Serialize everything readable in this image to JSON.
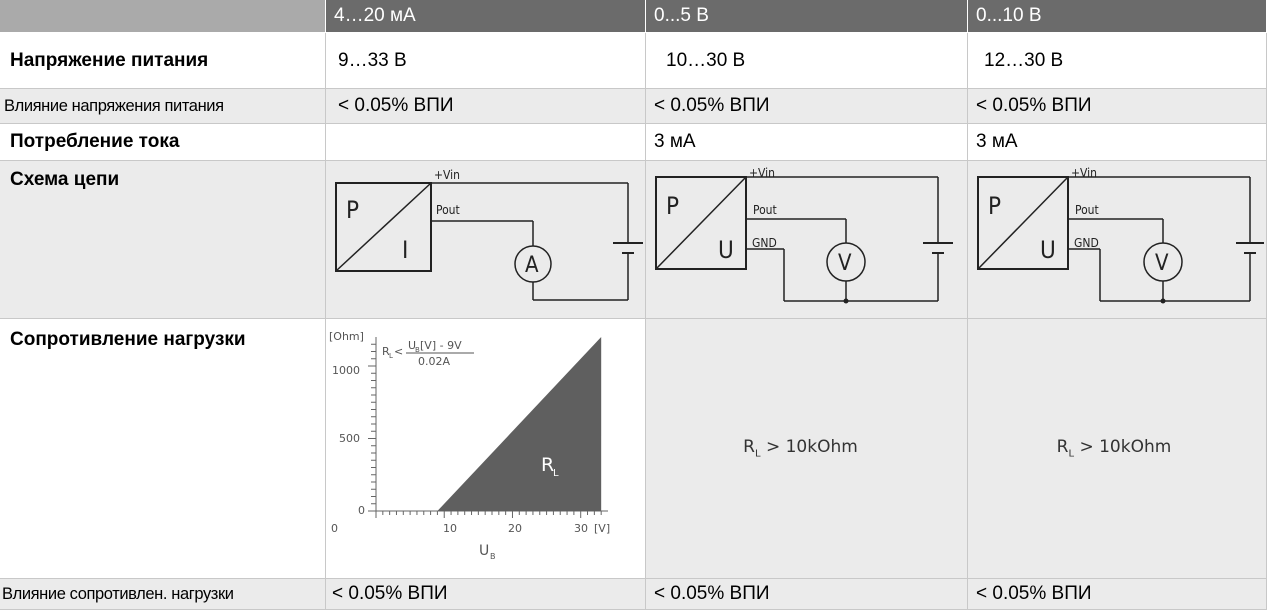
{
  "header": {
    "corner": "",
    "col1": "4…20 мА",
    "col2": "0...5 В",
    "col3": "0...10 В"
  },
  "rows": {
    "supply_voltage": {
      "label": "Напряжение питания",
      "c1": "9…33 В",
      "c2": "10…30 В",
      "c3": "12…30 В"
    },
    "supply_influence": {
      "label": "Влияние напряжения питания",
      "c1": "< 0.05% ВПИ",
      "c2": "< 0.05% ВПИ",
      "c3": "< 0.05% ВПИ"
    },
    "current_consumption": {
      "label": "Потребление тока",
      "c1": "",
      "c2": "3 мА",
      "c3": "3 мА"
    },
    "circuit": {
      "label": "Схема цепи"
    },
    "load_resistance": {
      "label": "Сопротивление нагрузки"
    },
    "load_influence": {
      "label": "Влияние сопротивлен. нагрузки",
      "c1": "< 0.05% ВПИ",
      "c2": "< 0.05% ВПИ",
      "c3": "< 0.05% ВПИ"
    }
  },
  "circuit": {
    "vin": "+Vin",
    "pout": "Pout",
    "gnd": "GND",
    "p": "P",
    "i": "I",
    "u": "U",
    "ammeter": "A",
    "voltmeter": "V"
  },
  "load_chart": {
    "ylabel": "[Ohm]",
    "xlabel_unit": "[V]",
    "xlabel": "U",
    "xlabel_sub": "B",
    "formula_left": "R",
    "formula_left_sub": "L",
    "formula_lt": "<",
    "formula_num": "U",
    "formula_num_sub": "B",
    "formula_num_rest": "[V] - 9V",
    "formula_den": "0.02A",
    "area_label": "R",
    "area_label_sub": "L",
    "y_ticks": [
      "1000",
      "500",
      "0"
    ],
    "x_ticks": [
      "0",
      "10",
      "20",
      "30"
    ]
  },
  "chart_data": {
    "type": "area",
    "title": "",
    "x": [
      9,
      33
    ],
    "series": [
      {
        "values": [
          0,
          1200
        ]
      }
    ],
    "xlabel": "U_B [V]",
    "ylabel": "[Ohm]",
    "xlim": [
      0,
      34
    ],
    "ylim": [
      0,
      1200
    ]
  },
  "load_conditions": {
    "col2": {
      "r": "R",
      "sub": "L",
      "rest": " > 10kOhm"
    },
    "col3": {
      "r": "R",
      "sub": "L",
      "rest": " > 10kOhm"
    }
  }
}
